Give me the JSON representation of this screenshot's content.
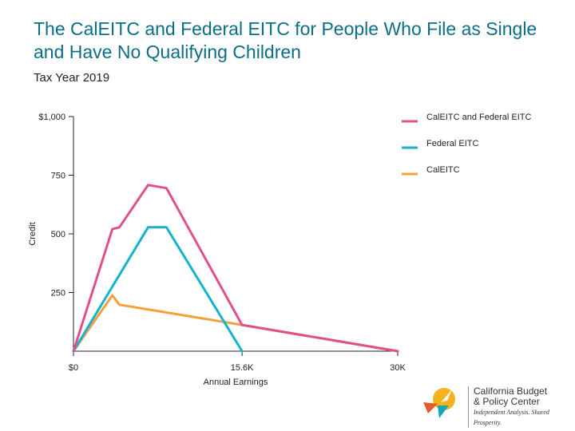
{
  "header": {
    "title": "The CalEITC and Federal EITC for People Who File as Single and Have No Qualifying Children",
    "subtitle": "Tax Year 2019"
  },
  "chart_data": {
    "type": "line",
    "title": "The CalEITC and Federal EITC for People Who File as Single and Have No Qualifying Children",
    "subtitle": "Tax Year 2019",
    "xlabel": "Annual Earnings",
    "ylabel": "Credit",
    "xlim": [
      0,
      30000
    ],
    "ylim": [
      0,
      1000
    ],
    "x_ticks": [
      {
        "value": 0,
        "label": "$0"
      },
      {
        "value": 15600,
        "label": "15.6K"
      },
      {
        "value": 30000,
        "label": "30K"
      }
    ],
    "y_ticks": [
      {
        "value": 250,
        "label": "250"
      },
      {
        "value": 500,
        "label": "500"
      },
      {
        "value": 750,
        "label": "750"
      },
      {
        "value": 1000,
        "label": "$1,000"
      }
    ],
    "grid": false,
    "legend_position": "right",
    "series": [
      {
        "name": "CalEITC and Federal EITC",
        "color": "#e0508f",
        "points": [
          [
            0,
            0
          ],
          [
            3600,
            520
          ],
          [
            4250,
            528
          ],
          [
            6900,
            708
          ],
          [
            8600,
            695
          ],
          [
            15600,
            112
          ],
          [
            30000,
            0
          ]
        ]
      },
      {
        "name": "Federal EITC",
        "color": "#17b2cf",
        "points": [
          [
            0,
            0
          ],
          [
            6900,
            528
          ],
          [
            8600,
            528
          ],
          [
            15600,
            0
          ]
        ]
      },
      {
        "name": "CalEITC",
        "color": "#f4a13d",
        "points": [
          [
            0,
            0
          ],
          [
            3600,
            238
          ],
          [
            4250,
            198
          ],
          [
            15600,
            112
          ],
          [
            30000,
            0
          ]
        ]
      }
    ]
  },
  "logo": {
    "line1": "California Budget",
    "line2": "& Policy Center",
    "tagline": "Independent Analysis. Shared Prosperity."
  }
}
